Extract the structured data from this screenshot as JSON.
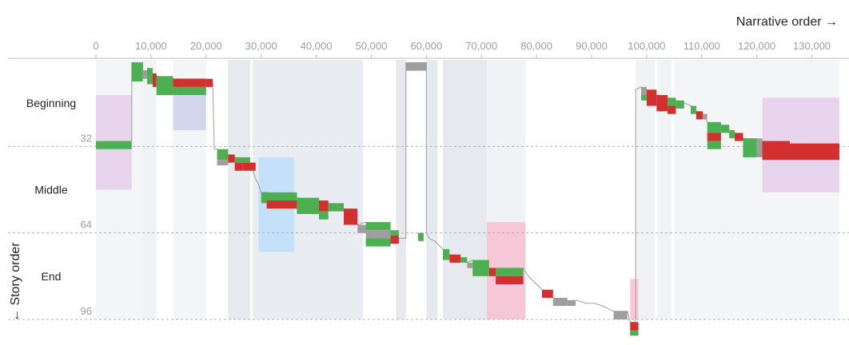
{
  "chart_data": {
    "type": "scatter",
    "xlabel": "Narrative order →",
    "ylabel": "← Story order",
    "xlim": [
      0,
      135000
    ],
    "ylim": [
      0,
      96
    ],
    "x_ticks": [
      {
        "value": 0,
        "label": "0"
      },
      {
        "value": 10000,
        "label": "10,000"
      },
      {
        "value": 20000,
        "label": "20,000"
      },
      {
        "value": 30000,
        "label": "30,000"
      },
      {
        "value": 40000,
        "label": "40,000"
      },
      {
        "value": 50000,
        "label": "50,000"
      },
      {
        "value": 60000,
        "label": "60,000"
      },
      {
        "value": 70000,
        "label": "70,000"
      },
      {
        "value": 80000,
        "label": "80,000"
      },
      {
        "value": 90000,
        "label": "90,000"
      },
      {
        "value": 100000,
        "label": "100,000"
      },
      {
        "value": 110000,
        "label": "110,000"
      },
      {
        "value": 120000,
        "label": "120,000"
      },
      {
        "value": 130000,
        "label": "130,000"
      }
    ],
    "y_ticks": [
      {
        "value": 32,
        "label": "32"
      },
      {
        "value": 64,
        "label": "64"
      },
      {
        "value": 96,
        "label": "96"
      }
    ],
    "segments": [
      {
        "label": "Beginning",
        "y": 16
      },
      {
        "label": "Middle",
        "y": 48
      },
      {
        "label": "End",
        "y": 80
      }
    ],
    "colors": {
      "green": "#4caf50",
      "red": "#d32f2f",
      "gray": "#9e9e9e",
      "path": "#9e9e9e"
    },
    "background_bands": [
      {
        "x0": 0,
        "x1": 8500,
        "color": "#eceff1",
        "opacity": 0.6
      },
      {
        "x0": 8500,
        "x1": 11000,
        "color": "#eceff1",
        "opacity": 0.8
      },
      {
        "x0": 14000,
        "x1": 20000,
        "color": "#eceff1",
        "opacity": 0.6
      },
      {
        "x0": 24000,
        "x1": 28000,
        "color": "#e3e7ec",
        "opacity": 0.9
      },
      {
        "x0": 28500,
        "x1": 48500,
        "color": "#e3e7ec",
        "opacity": 0.8
      },
      {
        "x0": 54500,
        "x1": 56300,
        "color": "#e3e7ec",
        "opacity": 0.9
      },
      {
        "x0": 60000,
        "x1": 62000,
        "color": "#e3e7ec",
        "opacity": 0.9
      },
      {
        "x0": 63000,
        "x1": 71000,
        "color": "#e3e7ec",
        "opacity": 0.9
      },
      {
        "x0": 71000,
        "x1": 78000,
        "color": "#eceff1",
        "opacity": 0.8
      },
      {
        "x0": 98000,
        "x1": 101500,
        "color": "#eceff1",
        "opacity": 0.8
      },
      {
        "x0": 102000,
        "x1": 104500,
        "color": "#eceff1",
        "opacity": 0.8
      },
      {
        "x0": 105000,
        "x1": 135000,
        "color": "#eceff1",
        "opacity": 0.6
      }
    ],
    "highlight_boxes": [
      {
        "x0": 0,
        "x1": 6500,
        "y0": 13,
        "y1": 48,
        "color": "#e1bee7",
        "opacity": 0.6
      },
      {
        "x0": 14000,
        "x1": 20000,
        "y0": 8,
        "y1": 26,
        "color": "#c5cae9",
        "opacity": 0.7
      },
      {
        "x0": 29500,
        "x1": 36000,
        "y0": 36,
        "y1": 71,
        "color": "#bbdefb",
        "opacity": 0.8
      },
      {
        "x0": 71000,
        "x1": 78000,
        "y0": 60,
        "y1": 96,
        "color": "#f8bbd0",
        "opacity": 0.8
      },
      {
        "x0": 97000,
        "x1": 98500,
        "y0": 81,
        "y1": 96,
        "color": "#f8bbd0",
        "opacity": 0.8
      },
      {
        "x0": 121000,
        "x1": 135000,
        "y0": 14,
        "y1": 49,
        "color": "#e1bee7",
        "opacity": 0.6
      }
    ],
    "scenes": [
      {
        "x": 0,
        "w": 6500,
        "y": 30,
        "h": 3,
        "c": "green"
      },
      {
        "x": 6500,
        "w": 2000,
        "y": 1,
        "h": 7,
        "c": "green"
      },
      {
        "x": 8500,
        "w": 800,
        "y": 4,
        "h": 3,
        "c": "gray"
      },
      {
        "x": 9300,
        "w": 1000,
        "y": 3,
        "h": 6,
        "c": "green"
      },
      {
        "x": 10300,
        "w": 700,
        "y": 5,
        "h": 5,
        "c": "red"
      },
      {
        "x": 11000,
        "w": 3000,
        "y": 6,
        "h": 7,
        "c": "green"
      },
      {
        "x": 14000,
        "w": 6000,
        "y": 7,
        "h": 3,
        "c": "red"
      },
      {
        "x": 14000,
        "w": 6000,
        "y": 10,
        "h": 3,
        "c": "green"
      },
      {
        "x": 20000,
        "w": 1200,
        "y": 7,
        "h": 3,
        "c": "red"
      },
      {
        "x": 22000,
        "w": 2000,
        "y": 33,
        "h": 4,
        "c": "green"
      },
      {
        "x": 22000,
        "w": 2000,
        "y": 37,
        "h": 2,
        "c": "gray"
      },
      {
        "x": 24000,
        "w": 1200,
        "y": 35,
        "h": 3,
        "c": "red"
      },
      {
        "x": 25200,
        "w": 1400,
        "y": 38,
        "h": 3,
        "c": "red"
      },
      {
        "x": 25200,
        "w": 2800,
        "y": 36,
        "h": 2,
        "c": "green"
      },
      {
        "x": 26600,
        "w": 2400,
        "y": 38,
        "h": 3,
        "c": "red"
      },
      {
        "x": 30000,
        "w": 1000,
        "y": 49,
        "h": 4,
        "c": "green"
      },
      {
        "x": 31000,
        "w": 5500,
        "y": 49,
        "h": 3,
        "c": "green"
      },
      {
        "x": 31000,
        "w": 5500,
        "y": 52,
        "h": 3,
        "c": "red"
      },
      {
        "x": 36500,
        "w": 4000,
        "y": 51,
        "h": 6,
        "c": "green"
      },
      {
        "x": 40500,
        "w": 1700,
        "y": 52,
        "h": 4,
        "c": "red"
      },
      {
        "x": 40500,
        "w": 1700,
        "y": 56,
        "h": 3,
        "c": "green"
      },
      {
        "x": 42200,
        "w": 2800,
        "y": 53,
        "h": 3,
        "c": "green"
      },
      {
        "x": 45000,
        "w": 2500,
        "y": 55,
        "h": 6,
        "c": "red"
      },
      {
        "x": 47500,
        "w": 1500,
        "y": 61,
        "h": 3,
        "c": "gray"
      },
      {
        "x": 49000,
        "w": 4500,
        "y": 60,
        "h": 3,
        "c": "green"
      },
      {
        "x": 49000,
        "w": 4500,
        "y": 63,
        "h": 3,
        "c": "gray"
      },
      {
        "x": 49000,
        "w": 4500,
        "y": 66,
        "h": 3,
        "c": "green"
      },
      {
        "x": 53500,
        "w": 1500,
        "y": 63,
        "h": 2,
        "c": "green"
      },
      {
        "x": 53500,
        "w": 1500,
        "y": 65,
        "h": 3,
        "c": "red"
      },
      {
        "x": 56300,
        "w": 3700,
        "y": 1,
        "h": 3,
        "c": "gray"
      },
      {
        "x": 58500,
        "w": 1000,
        "y": 64,
        "h": 3,
        "c": "green"
      },
      {
        "x": 63000,
        "w": 1200,
        "y": 70,
        "h": 4,
        "c": "green"
      },
      {
        "x": 64200,
        "w": 2000,
        "y": 72,
        "h": 3,
        "c": "red"
      },
      {
        "x": 66200,
        "w": 1200,
        "y": 73,
        "h": 2,
        "c": "green"
      },
      {
        "x": 67400,
        "w": 1000,
        "y": 75,
        "h": 2,
        "c": "gray"
      },
      {
        "x": 68400,
        "w": 3000,
        "y": 74,
        "h": 6,
        "c": "green"
      },
      {
        "x": 71400,
        "w": 1200,
        "y": 77,
        "h": 3,
        "c": "red"
      },
      {
        "x": 72600,
        "w": 5000,
        "y": 77,
        "h": 3,
        "c": "green"
      },
      {
        "x": 72600,
        "w": 5000,
        "y": 80,
        "h": 3,
        "c": "red"
      },
      {
        "x": 81000,
        "w": 2000,
        "y": 85,
        "h": 3,
        "c": "red"
      },
      {
        "x": 83000,
        "w": 2600,
        "y": 88,
        "h": 3,
        "c": "gray"
      },
      {
        "x": 85600,
        "w": 1500,
        "y": 89,
        "h": 2,
        "c": "gray"
      },
      {
        "x": 94000,
        "w": 2500,
        "y": 93,
        "h": 3,
        "c": "gray"
      },
      {
        "x": 97000,
        "w": 1500,
        "y": 97,
        "h": 3,
        "c": "red"
      },
      {
        "x": 97000,
        "w": 1500,
        "y": 100,
        "h": 2,
        "c": "green"
      },
      {
        "x": 99000,
        "w": 1000,
        "y": 10,
        "h": 3,
        "c": "gray"
      },
      {
        "x": 99000,
        "w": 1000,
        "y": 13,
        "h": 2,
        "c": "green"
      },
      {
        "x": 100000,
        "w": 1800,
        "y": 11,
        "h": 6,
        "c": "red"
      },
      {
        "x": 101800,
        "w": 2000,
        "y": 13,
        "h": 6,
        "c": "red"
      },
      {
        "x": 103800,
        "w": 1500,
        "y": 14,
        "h": 3,
        "c": "green"
      },
      {
        "x": 103800,
        "w": 1500,
        "y": 17,
        "h": 3,
        "c": "red"
      },
      {
        "x": 105300,
        "w": 1500,
        "y": 15,
        "h": 3,
        "c": "green"
      },
      {
        "x": 108000,
        "w": 1000,
        "y": 17,
        "h": 3,
        "c": "green"
      },
      {
        "x": 109000,
        "w": 1200,
        "y": 19,
        "h": 3,
        "c": "red"
      },
      {
        "x": 110200,
        "w": 800,
        "y": 20,
        "h": 2,
        "c": "gray"
      },
      {
        "x": 111000,
        "w": 2500,
        "y": 23,
        "h": 4,
        "c": "green"
      },
      {
        "x": 111000,
        "w": 2500,
        "y": 27,
        "h": 3,
        "c": "red"
      },
      {
        "x": 111000,
        "w": 2500,
        "y": 30,
        "h": 3,
        "c": "green"
      },
      {
        "x": 113500,
        "w": 1500,
        "y": 24,
        "h": 3,
        "c": "green"
      },
      {
        "x": 115000,
        "w": 1000,
        "y": 26,
        "h": 3,
        "c": "green"
      },
      {
        "x": 116000,
        "w": 1500,
        "y": 27,
        "h": 3,
        "c": "red"
      },
      {
        "x": 117500,
        "w": 2500,
        "y": 29,
        "h": 7,
        "c": "green"
      },
      {
        "x": 120000,
        "w": 1000,
        "y": 29,
        "h": 7,
        "c": "gray"
      },
      {
        "x": 121000,
        "w": 5000,
        "y": 30,
        "h": 7,
        "c": "red"
      },
      {
        "x": 126000,
        "w": 9000,
        "y": 31,
        "h": 6,
        "c": "red"
      }
    ],
    "path": [
      [
        6500,
        30
      ],
      [
        6500,
        1
      ],
      [
        8500,
        1
      ],
      [
        8500,
        4
      ],
      [
        9300,
        4
      ],
      [
        9300,
        5
      ],
      [
        10300,
        5
      ],
      [
        10300,
        6
      ],
      [
        11000,
        6
      ],
      [
        14000,
        7
      ],
      [
        20000,
        7
      ],
      [
        21200,
        8
      ],
      [
        21500,
        33
      ],
      [
        22000,
        33
      ],
      [
        24000,
        35
      ],
      [
        25200,
        36
      ],
      [
        28000,
        38
      ],
      [
        28500,
        41
      ],
      [
        29000,
        44
      ],
      [
        29500,
        46
      ],
      [
        30000,
        49
      ],
      [
        31000,
        49
      ],
      [
        36500,
        51
      ],
      [
        40500,
        52
      ],
      [
        42200,
        53
      ],
      [
        45000,
        55
      ],
      [
        47500,
        61
      ],
      [
        49000,
        60
      ],
      [
        53500,
        63
      ],
      [
        55000,
        66
      ],
      [
        56300,
        66
      ],
      [
        56300,
        1
      ],
      [
        60000,
        1
      ],
      [
        60000,
        64
      ],
      [
        60500,
        66
      ],
      [
        61500,
        67
      ],
      [
        62500,
        69
      ],
      [
        63000,
        70
      ],
      [
        64200,
        72
      ],
      [
        66200,
        73
      ],
      [
        67400,
        75
      ],
      [
        68400,
        74
      ],
      [
        71400,
        77
      ],
      [
        77600,
        77
      ],
      [
        78500,
        80
      ],
      [
        79500,
        82
      ],
      [
        80500,
        84
      ],
      [
        81000,
        85
      ],
      [
        83000,
        88
      ],
      [
        85600,
        89
      ],
      [
        87500,
        89
      ],
      [
        89000,
        90
      ],
      [
        90500,
        90
      ],
      [
        92000,
        91
      ],
      [
        93000,
        92
      ],
      [
        94000,
        93
      ],
      [
        96500,
        93
      ],
      [
        97000,
        97
      ],
      [
        98000,
        97
      ],
      [
        98000,
        11
      ],
      [
        99000,
        10
      ],
      [
        100000,
        11
      ],
      [
        101800,
        13
      ],
      [
        103800,
        14
      ],
      [
        105300,
        15
      ],
      [
        107000,
        16
      ],
      [
        108000,
        17
      ],
      [
        109000,
        19
      ],
      [
        110200,
        20
      ],
      [
        111000,
        23
      ],
      [
        113500,
        24
      ],
      [
        115000,
        26
      ],
      [
        116000,
        27
      ],
      [
        117500,
        29
      ],
      [
        121000,
        30
      ],
      [
        126000,
        31
      ],
      [
        135000,
        31
      ]
    ]
  }
}
